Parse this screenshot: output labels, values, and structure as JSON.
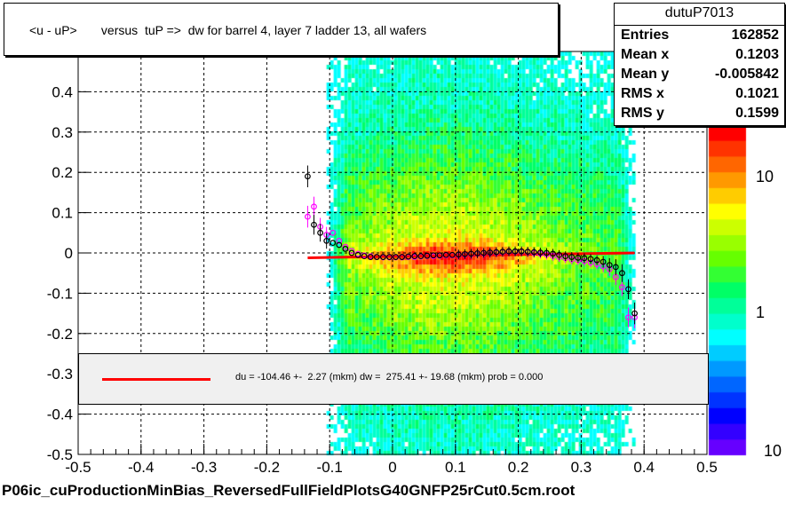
{
  "title": "<u - uP>       versus  tuP =>  dw for barrel 4, layer 7 ladder 13, all wafers",
  "stats": {
    "name": "dutuP7013",
    "rows": [
      {
        "label": "Entries",
        "value": "162852"
      },
      {
        "label": "Mean x",
        "value": "0.1203"
      },
      {
        "label": "Mean y",
        "value": "-0.005842"
      },
      {
        "label": "RMS x",
        "value": "0.1021"
      },
      {
        "label": "RMS y",
        "value": "0.1599"
      }
    ]
  },
  "fit_legend": {
    "text": "du = -104.46 +-  2.27 (mkm) dw =  275.41 +- 19.68 (mkm) prob = 0.000",
    "color": "#ff0000"
  },
  "footer": "P06ic_cuProductionMinBias_ReversedFullFieldPlotsG40GNFP25rCut0.5cm.root",
  "chart_data": {
    "type": "heatmap",
    "xlim": [
      -0.5,
      0.5
    ],
    "ylim": [
      -0.5,
      0.5
    ],
    "x_ticks": [
      "-0.5",
      "-0.4",
      "-0.3",
      "-0.2",
      "-0.1",
      "0",
      "0.1",
      "0.2",
      "0.3",
      "0.4",
      "0.5"
    ],
    "y_ticks": [
      "-0.5",
      "-0.4",
      "-0.3",
      "-0.2",
      "-0.1",
      "0",
      "0.1",
      "0.2",
      "0.3",
      "0.4"
    ],
    "colorbar_labels": [
      "10",
      "1",
      "10"
    ],
    "colorbar_log": true,
    "grid": true,
    "density_x_range": [
      -0.105,
      0.385
    ],
    "fit_line": {
      "x": [
        -0.135,
        0.385
      ],
      "y": [
        -0.012,
        0.0
      ],
      "color": "#ff0000"
    },
    "profile_black": {
      "x": [
        -0.135,
        -0.125,
        -0.115,
        -0.105,
        -0.095,
        -0.085,
        -0.075,
        -0.065,
        -0.055,
        -0.045,
        -0.035,
        -0.025,
        -0.015,
        -0.005,
        0.005,
        0.015,
        0.025,
        0.035,
        0.045,
        0.055,
        0.065,
        0.075,
        0.085,
        0.095,
        0.105,
        0.115,
        0.125,
        0.135,
        0.145,
        0.155,
        0.165,
        0.175,
        0.185,
        0.195,
        0.205,
        0.215,
        0.225,
        0.235,
        0.245,
        0.255,
        0.265,
        0.275,
        0.285,
        0.295,
        0.305,
        0.315,
        0.325,
        0.335,
        0.345,
        0.355,
        0.365,
        0.375,
        0.385
      ],
      "y": [
        0.19,
        0.07,
        0.05,
        0.03,
        0.025,
        0.02,
        0.01,
        0.0,
        -0.005,
        -0.008,
        -0.01,
        -0.01,
        -0.01,
        -0.01,
        -0.01,
        -0.01,
        -0.009,
        -0.008,
        -0.008,
        -0.007,
        -0.006,
        -0.006,
        -0.005,
        -0.005,
        -0.004,
        -0.003,
        -0.002,
        -0.001,
        0.0,
        0.001,
        0.002,
        0.003,
        0.004,
        0.004,
        0.004,
        0.003,
        0.002,
        0.001,
        0.0,
        -0.002,
        -0.005,
        -0.008,
        -0.01,
        -0.012,
        -0.013,
        -0.015,
        -0.018,
        -0.022,
        -0.03,
        -0.035,
        -0.05,
        -0.09,
        -0.15
      ]
    },
    "profile_magenta": {
      "x": [
        -0.135,
        -0.125,
        -0.115,
        -0.105,
        -0.095,
        -0.085,
        -0.075,
        -0.065,
        -0.055,
        -0.045,
        -0.035,
        -0.025,
        -0.015,
        -0.005,
        0.005,
        0.015,
        0.025,
        0.035,
        0.045,
        0.055,
        0.065,
        0.075,
        0.085,
        0.095,
        0.105,
        0.115,
        0.125,
        0.135,
        0.145,
        0.155,
        0.165,
        0.175,
        0.185,
        0.195,
        0.205,
        0.215,
        0.225,
        0.235,
        0.245,
        0.255,
        0.265,
        0.275,
        0.285,
        0.295,
        0.305,
        0.315,
        0.325,
        0.335,
        0.345,
        0.355,
        0.365,
        0.375,
        0.385
      ],
      "y": [
        0.09,
        0.115,
        0.065,
        0.045,
        0.05,
        0.03,
        0.015,
        0.005,
        -0.002,
        -0.006,
        -0.008,
        -0.01,
        -0.011,
        -0.011,
        -0.011,
        -0.011,
        -0.01,
        -0.01,
        -0.009,
        -0.008,
        -0.008,
        -0.007,
        -0.006,
        -0.006,
        -0.005,
        -0.004,
        -0.003,
        -0.002,
        -0.001,
        0.0,
        0.001,
        0.002,
        0.003,
        0.003,
        0.003,
        0.002,
        0.0,
        -0.002,
        -0.004,
        -0.007,
        -0.01,
        -0.013,
        -0.016,
        -0.018,
        -0.02,
        -0.024,
        -0.028,
        -0.033,
        -0.04,
        -0.06,
        -0.085,
        -0.16,
        -0.16
      ]
    }
  }
}
